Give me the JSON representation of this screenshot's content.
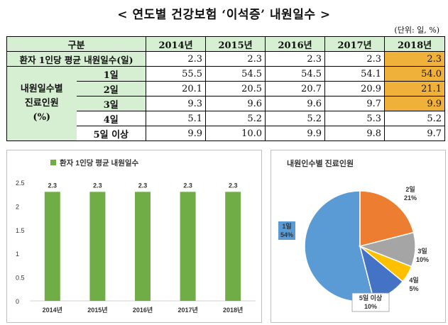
{
  "title": "< 연도별 건강보험 ‘이석증’ 내원일수 >",
  "unit": "(단위: 일, %)",
  "table": {
    "header": [
      "구분",
      "2014년",
      "2015년",
      "2016년",
      "2017년",
      "2018년"
    ],
    "avg_row": {
      "label": "환자 1인당 평균 내원일수(일)",
      "values": [
        "2.3",
        "2.3",
        "2.3",
        "2.3",
        "2.3"
      ]
    },
    "group_label_1": "내원일수별",
    "group_label_2": "진료인원",
    "group_label_3": "(%)",
    "rows": [
      {
        "label": "1일",
        "values": [
          "55.5",
          "54.5",
          "54.5",
          "54.1",
          "54.0"
        ]
      },
      {
        "label": "2일",
        "values": [
          "20.1",
          "20.5",
          "20.7",
          "20.9",
          "21.1"
        ]
      },
      {
        "label": "3일",
        "values": [
          "9.3",
          "9.6",
          "9.6",
          "9.7",
          "9.9"
        ]
      },
      {
        "label": "4일",
        "values": [
          "5.1",
          "5.2",
          "5.2",
          "5.3",
          "5.2"
        ]
      },
      {
        "label": "5일 이상",
        "values": [
          "9.9",
          "10.0",
          "9.9",
          "9.8",
          "9.7"
        ]
      }
    ],
    "highlight_color": "#f0b13a"
  },
  "chart_data": [
    {
      "type": "bar",
      "title": "",
      "series": [
        {
          "name": "환자 1인당 평균 내원일수",
          "values": [
            2.3,
            2.3,
            2.3,
            2.3,
            2.3
          ]
        }
      ],
      "categories": [
        "2014년",
        "2015년",
        "2016년",
        "2017년",
        "2018년"
      ],
      "data_labels": [
        "2.3",
        "2.3",
        "2.3",
        "2.3",
        "2.3"
      ],
      "ylim": [
        0,
        2.5
      ],
      "yticks": [
        "0",
        "0.5",
        "1",
        "1.5",
        "2",
        "2.5"
      ],
      "ytick_values": [
        0,
        0.5,
        1,
        1.5,
        2,
        2.5
      ],
      "grid": false,
      "legend": "top-left",
      "color": "#70ad47"
    },
    {
      "type": "pie",
      "title": "내원인수별 진료인원",
      "slices": [
        {
          "label": "1일",
          "pct_label": "54%",
          "value": 54,
          "color": "#5b9bd5"
        },
        {
          "label": "2일",
          "pct_label": "21%",
          "value": 21,
          "color": "#ed7d31"
        },
        {
          "label": "3일",
          "pct_label": "10%",
          "value": 10,
          "color": "#a5a5a5"
        },
        {
          "label": "4일",
          "pct_label": "5%",
          "value": 5,
          "color": "#ffc000"
        },
        {
          "label": "5일 이상",
          "pct_label": "10%",
          "value": 10,
          "color": "#4472c4"
        }
      ]
    }
  ]
}
